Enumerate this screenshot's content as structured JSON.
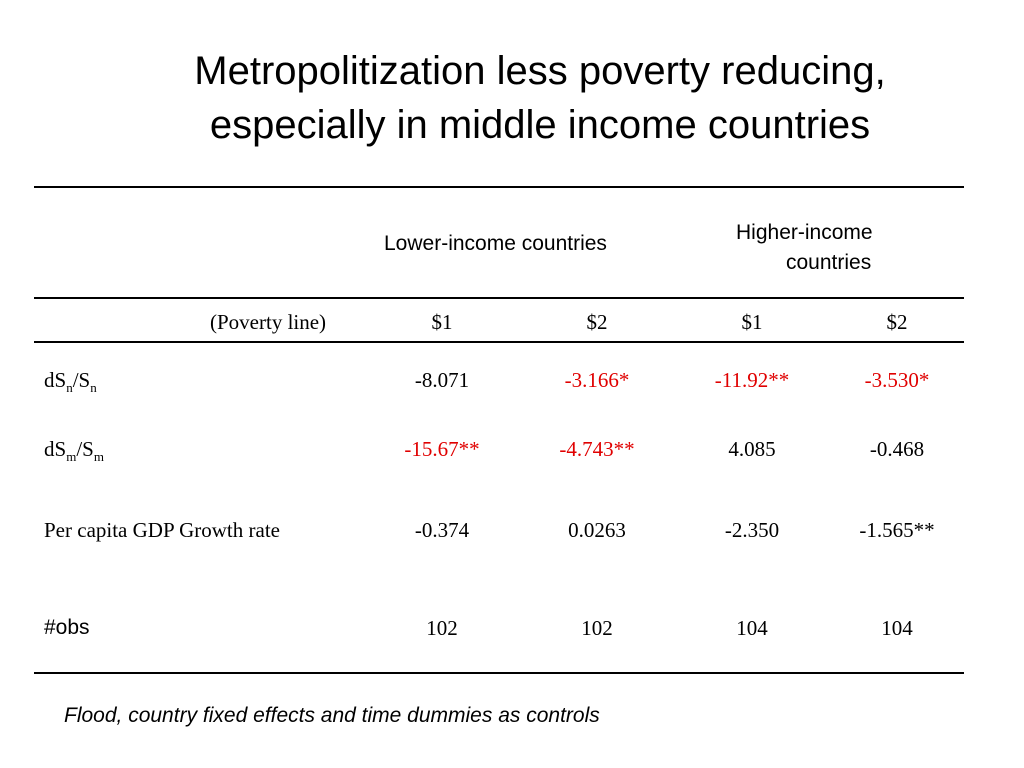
{
  "title": {
    "line1": "Metropolitization less poverty reducing,",
    "line2": "especially in middle income countries"
  },
  "table": {
    "header_lower": "Lower-income countries",
    "header_higher_line1": "Higher-income",
    "header_higher_line2": "countries",
    "poverty_label": "(Poverty line)",
    "poverty_lines": [
      "$1",
      "$2",
      "$1",
      "$2"
    ],
    "rows": [
      {
        "label_main": "dS",
        "label_sub1": "n",
        "label_slash": "/S",
        "label_sub2": "n",
        "values": [
          "-8.071",
          "-3.166*",
          "-11.92**",
          "-3.530*"
        ]
      },
      {
        "label_main": "dS",
        "label_sub1": "m",
        "label_slash": "/S",
        "label_sub2": "m",
        "values": [
          "-15.67**",
          "-4.743**",
          "4.085",
          "-0.468"
        ]
      },
      {
        "label": "Per capita GDP Growth rate",
        "values": [
          "-0.374",
          "0.0263",
          "-2.350",
          "-1.565**"
        ]
      },
      {
        "label": "#obs",
        "values": [
          "102",
          "102",
          "104",
          "104"
        ]
      }
    ],
    "highlight_color": "#e00000"
  },
  "footnote": "Flood, country fixed effects and time dummies as controls"
}
